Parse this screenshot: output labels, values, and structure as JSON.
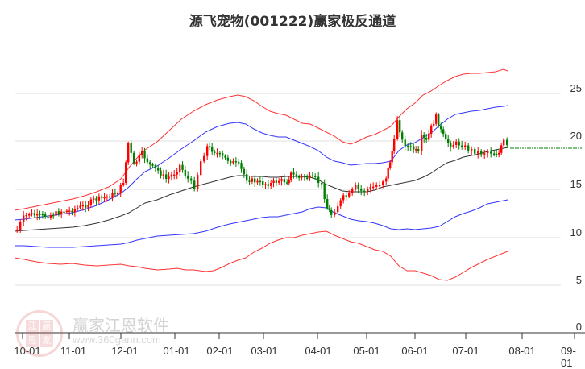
{
  "title": "源飞宠物(001222)赢家极反通道",
  "watermark": {
    "brand": "赢家江恩软件",
    "url": "www.360gann.com",
    "logo_chars": [
      "江",
      "赢",
      "恩",
      "家"
    ]
  },
  "colors": {
    "up_candle": "#ff0000",
    "down_candle": "#008000",
    "outer_band": "#ff0000",
    "inner_band": "#0000ff",
    "middle_line": "#000000",
    "last_price_line": "#008000",
    "grid": "#dddddd"
  },
  "y_axis": {
    "labels": [
      "25",
      "20",
      "15",
      "10",
      "5",
      "0"
    ]
  },
  "x_axis": {
    "labels": [
      "10-01",
      "11-01",
      "12-01",
      "01-01",
      "02-01",
      "03-01",
      "04-01",
      "05-01",
      "06-01",
      "07-01",
      "08-01",
      "09-01"
    ]
  },
  "chart_data": {
    "type": "candlestick_with_channels",
    "title": "源飞宠物(001222)赢家极反通道",
    "xlabel": "",
    "ylabel": "",
    "ylim": [
      0,
      27
    ],
    "y_ticks": [
      0,
      5,
      10,
      15,
      20,
      25
    ],
    "x_ticks": [
      "10-01",
      "11-01",
      "12-01",
      "01-01",
      "02-01",
      "03-01",
      "04-01",
      "05-01",
      "06-01",
      "07-01",
      "08-01",
      "09-01"
    ],
    "grid": true,
    "last_price": 19.1,
    "series": [
      {
        "name": "outer_upper (red)",
        "x": [
          "10-01",
          "11-01",
          "12-01",
          "01-01",
          "02-01",
          "03-01",
          "04-01",
          "05-01",
          "06-01",
          "07-01",
          "08-01"
        ],
        "values": [
          12.8,
          14.0,
          16.2,
          20.5,
          22.6,
          21.3,
          20.0,
          19.9,
          23.5,
          26.6,
          27.2
        ]
      },
      {
        "name": "inner_upper (blue)",
        "x": [
          "10-01",
          "11-01",
          "12-01",
          "01-01",
          "02-01",
          "03-01",
          "04-01",
          "05-01",
          "06-01",
          "07-01",
          "08-01"
        ],
        "values": [
          11.8,
          12.7,
          14.3,
          17.8,
          19.6,
          18.5,
          17.3,
          16.4,
          19.8,
          22.5,
          23.5
        ]
      },
      {
        "name": "middle (black)",
        "x": [
          "10-01",
          "11-01",
          "12-01",
          "01-01",
          "02-01",
          "03-01",
          "04-01",
          "05-01",
          "06-01",
          "07-01",
          "08-01"
        ],
        "values": [
          10.5,
          11.2,
          12.8,
          15.2,
          16.3,
          16.4,
          15.9,
          15.0,
          16.5,
          18.5,
          19.2
        ]
      },
      {
        "name": "inner_lower (blue)",
        "x": [
          "10-01",
          "11-01",
          "12-01",
          "01-01",
          "02-01",
          "03-01",
          "04-01",
          "05-01",
          "06-01",
          "07-01",
          "08-01"
        ],
        "values": [
          9.1,
          9.3,
          9.8,
          10.2,
          11.2,
          12.1,
          12.9,
          11.3,
          10.2,
          11.9,
          13.8
        ]
      },
      {
        "name": "outer_lower (red)",
        "x": [
          "10-01",
          "11-01",
          "12-01",
          "01-01",
          "02-01",
          "03-01",
          "04-01",
          "05-01",
          "06-01",
          "07-01",
          "08-01"
        ],
        "values": [
          7.8,
          7.0,
          6.7,
          6.6,
          7.7,
          9.2,
          10.5,
          8.3,
          6.2,
          7.3,
          8.8
        ]
      },
      {
        "name": "price_close (approx)",
        "x": [
          "10-01",
          "11-01",
          "12-01",
          "01-01",
          "02-01",
          "03-01",
          "04-01",
          "05-01",
          "06-01",
          "07-01",
          "08-01"
        ],
        "values": [
          10.8,
          12.2,
          13.5,
          15.5,
          16.3,
          15.3,
          15.6,
          14.8,
          19.5,
          20.3,
          19.1
        ]
      }
    ],
    "annotations": [
      "high ≈ 22.8 near 05-20",
      "low ≈ 11.5 near 04-08",
      "green dotted last-price line ≈ 19.1"
    ]
  }
}
